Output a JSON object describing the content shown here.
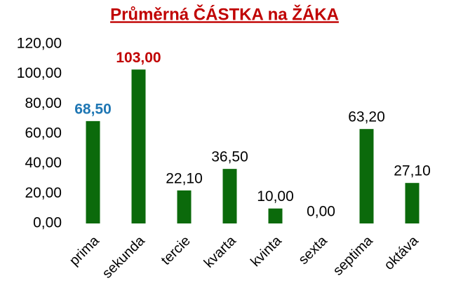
{
  "chart_data": {
    "type": "bar",
    "title": "Průměrná ČÁSTKA na ŽÁKA",
    "title_color": "#c00000",
    "categories": [
      "prima",
      "sekunda",
      "tercie",
      "kvarta",
      "kvinta",
      "sexta",
      "septima",
      "oktáva"
    ],
    "values": [
      68.5,
      103.0,
      22.1,
      36.5,
      10.0,
      0.0,
      63.2,
      27.1
    ],
    "value_labels": [
      "68,50",
      "103,00",
      "22,10",
      "36,50",
      "10,00",
      "0,00",
      "63,20",
      "27,10"
    ],
    "value_label_colors": [
      "#1f77b4",
      "#c00000",
      "#000000",
      "#000000",
      "#000000",
      "#000000",
      "#000000",
      "#000000"
    ],
    "color": "#0b6a0b",
    "ylim": [
      0,
      120
    ],
    "yticks": [
      {
        "value": 0,
        "label": "0,00"
      },
      {
        "value": 20,
        "label": "20,00"
      },
      {
        "value": 40,
        "label": "40,00"
      },
      {
        "value": 60,
        "label": "60,00"
      },
      {
        "value": 80,
        "label": "80,00"
      },
      {
        "value": 100,
        "label": "100,00"
      },
      {
        "value": 120,
        "label": "120,00"
      }
    ],
    "grid": false
  }
}
